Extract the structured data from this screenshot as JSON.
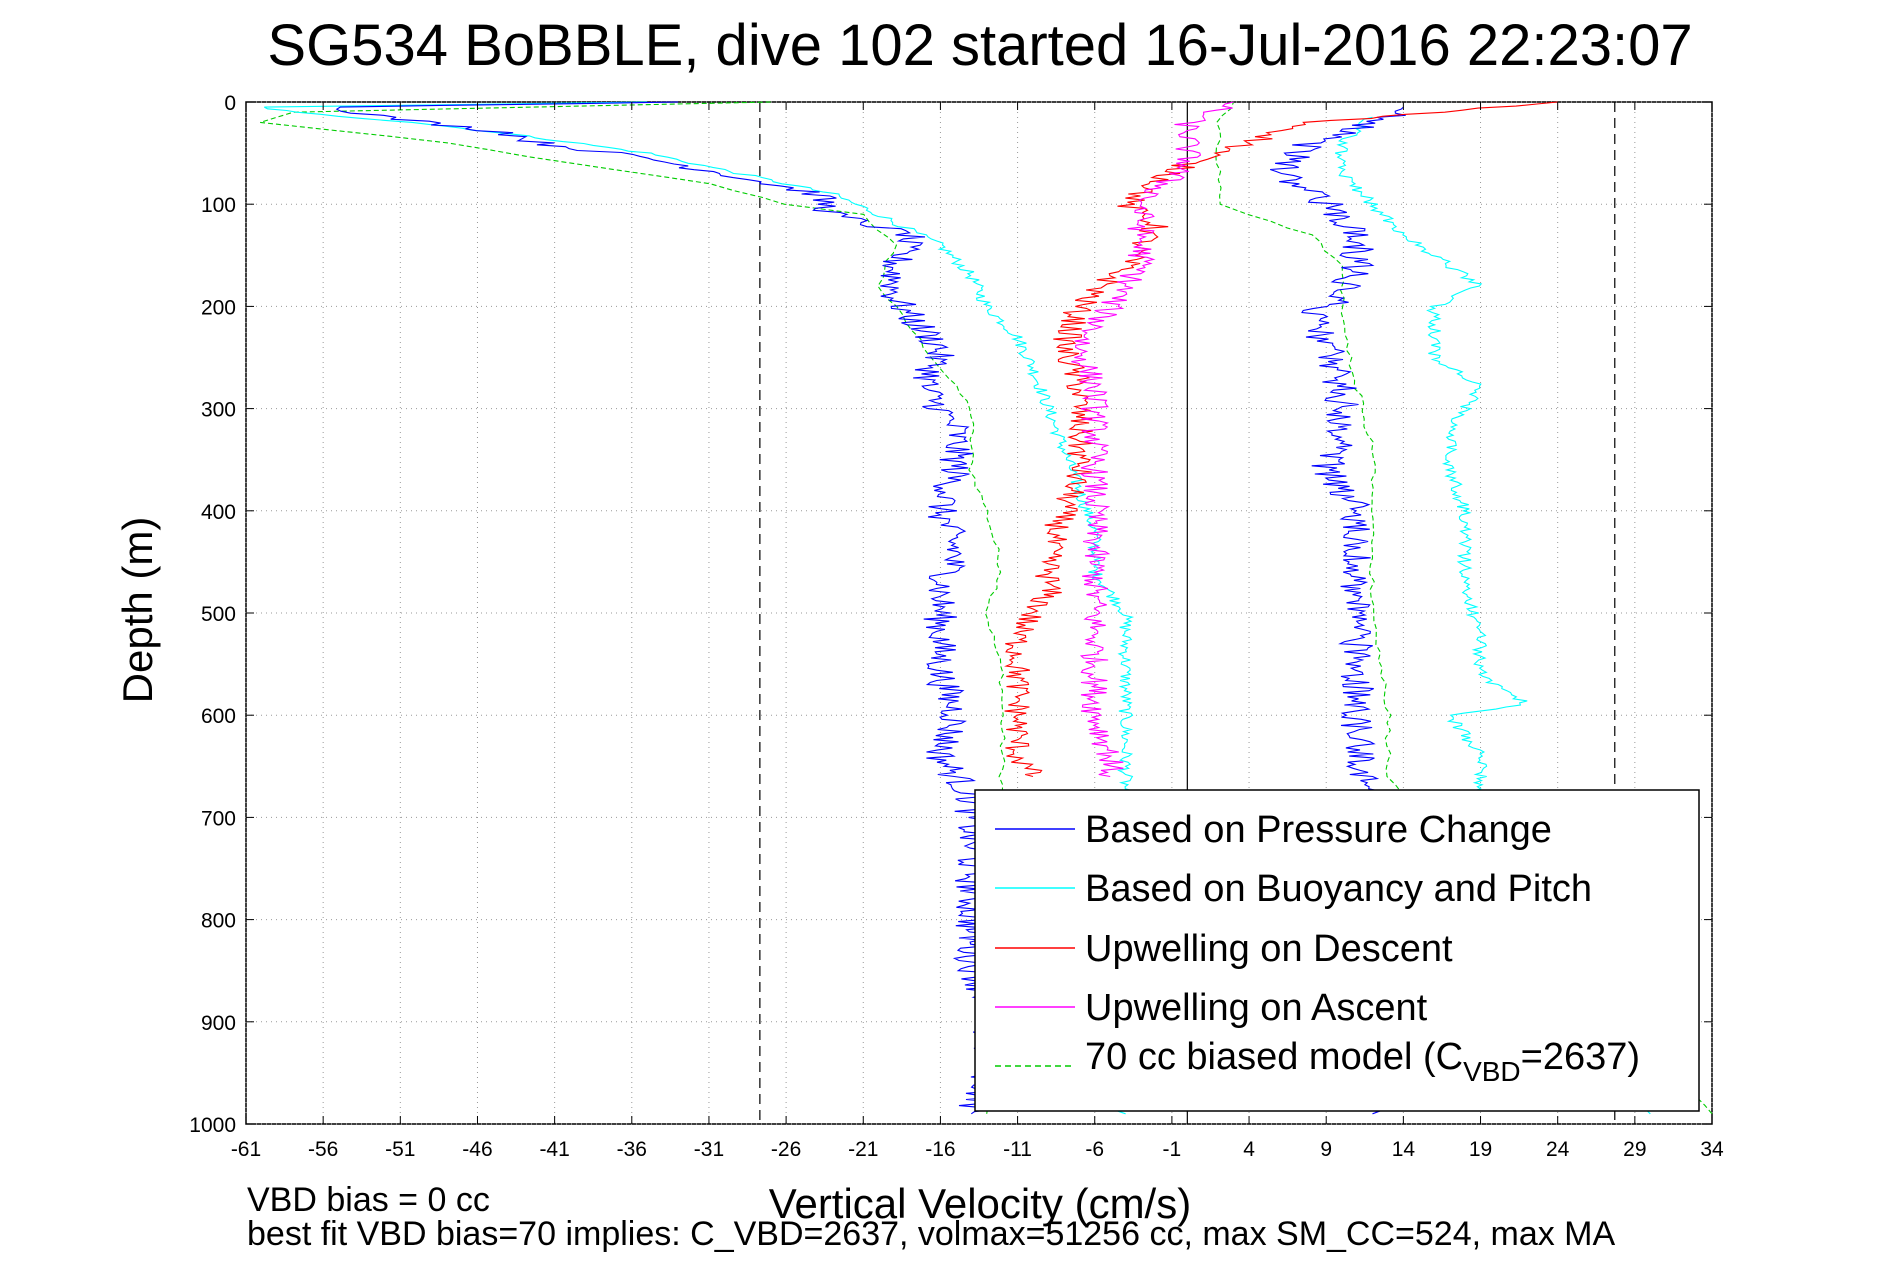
{
  "chart_data": {
    "type": "line",
    "title": "SG534 BoBBLE, dive 102 started 16-Jul-2016 22:23:07",
    "xlabel": "Vertical Velocity (cm/s)",
    "ylabel": "Depth (m)",
    "xlim": [
      -61,
      34
    ],
    "ylim": [
      0,
      1000
    ],
    "y_reversed": true,
    "grid": true,
    "x_ticks": [
      "-61",
      "-56",
      "-51",
      "-46",
      "-41",
      "-36",
      "-31",
      "-26",
      "-21",
      "-16",
      "-11",
      "-6",
      "-1",
      "4",
      "9",
      "14",
      "19",
      "24",
      "29",
      "34"
    ],
    "y_ticks": [
      "0",
      "100",
      "200",
      "300",
      "400",
      "500",
      "600",
      "700",
      "800",
      "900",
      "1000"
    ],
    "reference_lines": {
      "vertical_solid_x": 0,
      "vertical_dashed_x": [
        -27.7,
        27.7
      ]
    },
    "legend_placement": "bottom-right",
    "legend": [
      {
        "label": "Based on Pressure Change",
        "color": "#0000ff",
        "style": "solid"
      },
      {
        "label": "Based on Buoyancy and Pitch",
        "color": "#00ffff",
        "style": "solid"
      },
      {
        "label": "Upwelling on Descent",
        "color": "#ff0000",
        "style": "solid"
      },
      {
        "label": "Upwelling on Ascent",
        "color": "#ff00ff",
        "style": "solid"
      },
      {
        "label_pre": "70 cc biased model (C",
        "label_sub": "VBD",
        "label_post": "=2637)",
        "color": "#00cc00",
        "style": "dashed"
      }
    ],
    "series": [
      {
        "name": "Based on Pressure Change",
        "segment": "descent",
        "color": "#0000ff",
        "depth": [
          0,
          5,
          15,
          30,
          40,
          55,
          70,
          90,
          110,
          130,
          160,
          190,
          210,
          240,
          280,
          320,
          360,
          400,
          440,
          480,
          520,
          560,
          600,
          640,
          680,
          720,
          760,
          800,
          840,
          880,
          920,
          960,
          990
        ],
        "velocity": [
          -33,
          -55,
          -52,
          -44,
          -42,
          -35,
          -30,
          -24,
          -23,
          -18,
          -19,
          -19,
          -18,
          -16,
          -17,
          -15,
          -15,
          -16,
          -15,
          -16,
          -16,
          -16,
          -15,
          -16,
          -14,
          -14,
          -14,
          -14,
          -14,
          -13,
          -13,
          -13,
          -14
        ]
      },
      {
        "name": "Based on Pressure Change",
        "segment": "ascent",
        "color": "#0000ff",
        "depth": [
          990,
          960,
          920,
          880,
          840,
          800,
          760,
          720,
          680,
          640,
          600,
          560,
          520,
          480,
          440,
          400,
          360,
          320,
          280,
          240,
          210,
          190,
          160,
          130,
          100,
          70,
          40,
          15,
          5
        ],
        "velocity": [
          12,
          12,
          12,
          12,
          12,
          12,
          12,
          12,
          12,
          11,
          11,
          11,
          11,
          11,
          11,
          11,
          9,
          10,
          10,
          9,
          8,
          10,
          11,
          11,
          9,
          6,
          8,
          13,
          14
        ]
      },
      {
        "name": "Based on Buoyancy and Pitch",
        "segment": "descent",
        "color": "#00ffff",
        "depth": [
          0,
          5,
          10,
          20,
          35,
          50,
          70,
          90,
          110,
          140,
          170,
          200,
          230,
          260,
          300,
          340,
          380,
          420,
          460,
          480,
          500,
          600,
          700,
          800,
          900,
          990
        ],
        "velocity": [
          -35,
          -60,
          -58,
          -50,
          -42,
          -35,
          -29,
          -23,
          -20,
          -16,
          -14,
          -13,
          -11,
          -10,
          -9,
          -8,
          -7,
          -6,
          -6,
          -5,
          -4,
          -4,
          -4,
          -4,
          -4,
          -4
        ]
      },
      {
        "name": "Based on Buoyancy and Pitch",
        "segment": "ascent",
        "color": "#00ffff",
        "depth": [
          990,
          900,
          800,
          700,
          680,
          640,
          600,
          590,
          560,
          520,
          480,
          440,
          400,
          360,
          320,
          300,
          280,
          250,
          200,
          180,
          150,
          130,
          100,
          70,
          40,
          15
        ],
        "velocity": [
          30,
          20,
          20,
          20,
          19,
          19,
          17,
          22,
          19,
          19,
          18,
          18,
          18,
          17,
          17,
          18,
          19,
          16,
          16,
          19,
          16,
          14,
          12,
          10,
          10,
          12
        ]
      },
      {
        "name": "Upwelling on Descent",
        "color": "#ff0000",
        "depth": [
          0,
          20,
          60,
          100,
          120,
          160,
          200,
          240,
          280,
          320,
          360,
          400,
          440,
          480,
          520,
          560,
          600,
          640,
          660
        ],
        "velocity": [
          24,
          8,
          0,
          -4,
          -2,
          -4,
          -7,
          -8,
          -7,
          -7,
          -7,
          -8,
          -9,
          -9,
          -11,
          -11,
          -11,
          -11,
          -10
        ]
      },
      {
        "name": "Upwelling on Ascent",
        "color": "#ff00ff",
        "depth": [
          0,
          20,
          60,
          100,
          120,
          160,
          200,
          240,
          280,
          320,
          360,
          400,
          440,
          480,
          520,
          560,
          600,
          640,
          660
        ],
        "velocity": [
          3,
          0,
          0,
          -3,
          -3,
          -3,
          -5,
          -7,
          -6,
          -6,
          -6,
          -6,
          -6,
          -6,
          -6,
          -6,
          -6,
          -5,
          -5
        ]
      },
      {
        "name": "70 cc biased model (CVBD=2637)",
        "segment": "descent",
        "color": "#00cc00",
        "depth": [
          0,
          10,
          20,
          40,
          60,
          80,
          100,
          110,
          140,
          180,
          200,
          240,
          300,
          360,
          400,
          460,
          500,
          560,
          600,
          660,
          990
        ],
        "velocity": [
          -27,
          -58,
          -60,
          -48,
          -40,
          -31,
          -26,
          -21,
          -19,
          -20,
          -19,
          -17,
          -14,
          -14,
          -13,
          -12,
          -13,
          -12,
          -12,
          -12,
          -13
        ]
      },
      {
        "name": "70 cc biased model (CVBD=2637)",
        "segment": "ascent",
        "color": "#00cc00",
        "depth": [
          990,
          700,
          660,
          600,
          500,
          400,
          340,
          280,
          220,
          200,
          160,
          130,
          110,
          100,
          60,
          20,
          0
        ],
        "velocity": [
          34,
          15,
          13,
          13,
          12,
          12,
          12,
          11,
          10,
          10,
          10,
          8,
          4,
          2,
          2,
          2,
          3
        ]
      }
    ]
  },
  "footer": {
    "line1": "VBD bias = 0 cc",
    "line2": "best fit VBD bias=70 implies: C_VBD=2637, volmax=51256 cc, max SM_CC=524, max MA"
  }
}
